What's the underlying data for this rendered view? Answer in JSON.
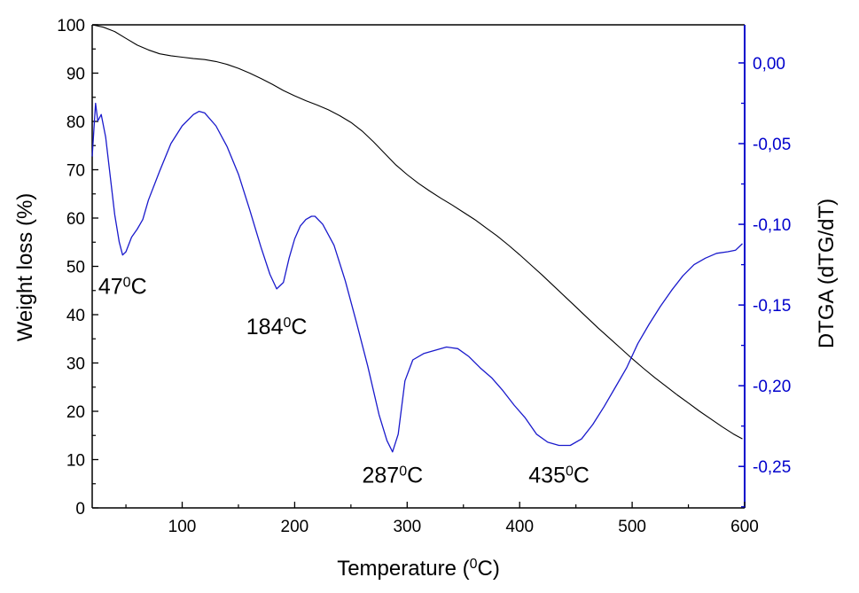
{
  "chart_data": {
    "type": "line",
    "title": "",
    "xlabel": {
      "pre": "Temperature (",
      "sup": "0",
      "post": "C)"
    },
    "ylabel_left": "Weight loss (%)",
    "ylabel_right": "DTGA (dTG/dT)",
    "xlim": [
      20,
      600
    ],
    "ylim_left": [
      0,
      100
    ],
    "ylim_right": [
      -0.2757,
      0.0236
    ],
    "x_ticks": [
      100,
      200,
      300,
      400,
      500,
      600
    ],
    "x_tick_labels": [
      "100",
      "200",
      "300",
      "400",
      "500",
      "600"
    ],
    "y_left_ticks": [
      0,
      10,
      20,
      30,
      40,
      50,
      60,
      70,
      80,
      90,
      100
    ],
    "y_left_tick_labels": [
      "0",
      "10",
      "20",
      "30",
      "40",
      "50",
      "60",
      "70",
      "80",
      "90",
      "100"
    ],
    "y_right_ticks": [
      0.0,
      -0.05,
      -0.1,
      -0.15,
      -0.2,
      -0.25
    ],
    "y_right_tick_labels": [
      "0,00",
      "-0,05",
      "-0,10",
      "-0,15",
      "-0,20",
      "-0,25"
    ],
    "colors": {
      "tga": "#000000",
      "dtga": "#1a1acc",
      "right_axis": "#0000cc"
    },
    "series": [
      {
        "name": "Weight loss",
        "axis": "left",
        "x": [
          20,
          30,
          40,
          50,
          60,
          70,
          80,
          90,
          100,
          110,
          120,
          130,
          140,
          150,
          160,
          170,
          180,
          190,
          200,
          210,
          220,
          230,
          240,
          250,
          260,
          270,
          280,
          290,
          300,
          310,
          320,
          330,
          340,
          350,
          360,
          370,
          380,
          390,
          400,
          410,
          420,
          430,
          440,
          450,
          460,
          470,
          480,
          490,
          500,
          510,
          520,
          530,
          540,
          550,
          560,
          570,
          580,
          590,
          598
        ],
        "y": [
          100,
          99.5,
          98.6,
          97.2,
          95.8,
          94.8,
          94.0,
          93.6,
          93.3,
          93.0,
          92.8,
          92.4,
          91.8,
          91.0,
          90.0,
          88.9,
          87.7,
          86.4,
          85.3,
          84.3,
          83.4,
          82.4,
          81.2,
          79.8,
          78.0,
          75.8,
          73.4,
          71.0,
          69.0,
          67.2,
          65.6,
          64.1,
          62.7,
          61.2,
          59.7,
          58.0,
          56.3,
          54.4,
          52.4,
          50.3,
          48.2,
          46.0,
          43.8,
          41.6,
          39.4,
          37.2,
          35.1,
          33.0,
          30.9,
          28.9,
          27.0,
          25.2,
          23.4,
          21.7,
          20.0,
          18.4,
          16.8,
          15.3,
          14.3
        ]
      },
      {
        "name": "DTGA",
        "axis": "right",
        "x": [
          20,
          23,
          25,
          28,
          32,
          36,
          40,
          44,
          47,
          50,
          55,
          60,
          65,
          70,
          80,
          90,
          100,
          110,
          115,
          120,
          130,
          140,
          150,
          160,
          170,
          178,
          184,
          190,
          195,
          200,
          205,
          210,
          215,
          218,
          225,
          235,
          245,
          255,
          265,
          275,
          282,
          287,
          292,
          298,
          305,
          315,
          325,
          335,
          345,
          355,
          365,
          375,
          385,
          395,
          405,
          415,
          425,
          435,
          445,
          455,
          465,
          475,
          485,
          495,
          505,
          515,
          525,
          535,
          545,
          555,
          565,
          575,
          585,
          592,
          598
        ],
        "y": [
          -0.058,
          -0.025,
          -0.036,
          -0.032,
          -0.046,
          -0.07,
          -0.094,
          -0.111,
          -0.119,
          -0.117,
          -0.108,
          -0.103,
          -0.097,
          -0.085,
          -0.067,
          -0.05,
          -0.039,
          -0.032,
          -0.03,
          -0.031,
          -0.039,
          -0.052,
          -0.069,
          -0.091,
          -0.114,
          -0.131,
          -0.14,
          -0.136,
          -0.121,
          -0.109,
          -0.101,
          -0.097,
          -0.095,
          -0.095,
          -0.1,
          -0.113,
          -0.135,
          -0.161,
          -0.188,
          -0.218,
          -0.234,
          -0.241,
          -0.23,
          -0.197,
          -0.184,
          -0.18,
          -0.178,
          -0.176,
          -0.177,
          -0.182,
          -0.189,
          -0.195,
          -0.203,
          -0.212,
          -0.22,
          -0.23,
          -0.235,
          -0.237,
          -0.237,
          -0.233,
          -0.224,
          -0.213,
          -0.201,
          -0.189,
          -0.174,
          -0.162,
          -0.151,
          -0.141,
          -0.132,
          -0.125,
          -0.121,
          -0.118,
          -0.117,
          -0.116,
          -0.112
        ]
      }
    ],
    "annotations": [
      {
        "num": "47",
        "sup": "0",
        "unit": "C",
        "x": 47,
        "y_right": -0.143
      },
      {
        "num": "184",
        "sup": "0",
        "unit": "C",
        "x": 184,
        "y_right": -0.168
      },
      {
        "num": "287",
        "sup": "0",
        "unit": "C",
        "x": 287,
        "y_right": -0.26
      },
      {
        "num": "435",
        "sup": "0",
        "unit": "C",
        "x": 435,
        "y_right": -0.26
      }
    ]
  }
}
